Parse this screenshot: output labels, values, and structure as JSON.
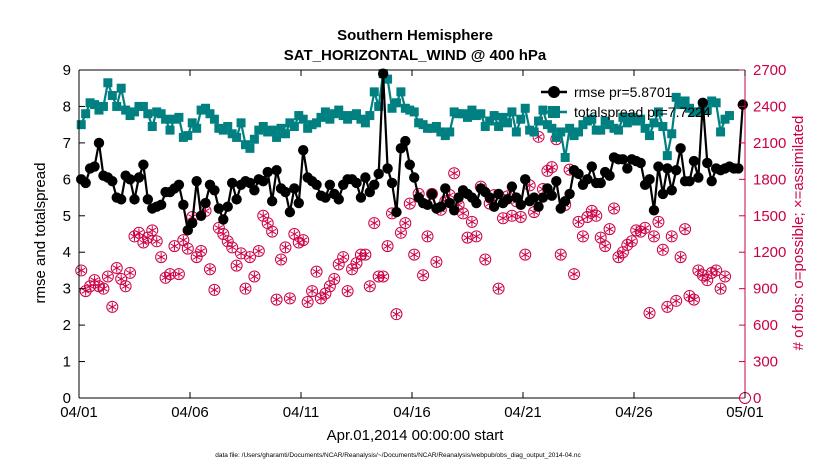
{
  "chart_data": {
    "type": "line",
    "title": "Southern Hemisphere",
    "subtitle": "SAT_HORIZONTAL_WIND @ 400 hPa",
    "xlabel": "Apr.01,2014 00:00:00 start",
    "ylabel_left": "rmse and totalspread",
    "ylabel_right": "# of obs: o=possible; ×=assimilated",
    "x_ticks": [
      "04/01",
      "04/06",
      "04/11",
      "04/16",
      "04/21",
      "04/26",
      "05/01"
    ],
    "xlim": [
      0,
      30
    ],
    "ylim_left": [
      0,
      9
    ],
    "ylim_right": [
      0,
      2700
    ],
    "yticks_left": [
      0,
      1,
      2,
      3,
      4,
      5,
      6,
      7,
      8,
      9
    ],
    "yticks_right": [
      0,
      300,
      600,
      900,
      1200,
      1500,
      1800,
      2100,
      2400,
      2700
    ],
    "footnote": "data file: /Users/gharamti/Documents/NCAR/Reanalysis/~/Documents/NCAR/Reanalysis/webpub/obs_diag_output_2014-04.nc",
    "colors": {
      "rmse": "#000000",
      "totalspread": "#008080",
      "obs": "#cc0044"
    },
    "legend": [
      {
        "label": "rmse pr=5.8701",
        "series": "rmse"
      },
      {
        "label": "totalspread pr=7.7224",
        "series": "totalspread"
      }
    ],
    "series": [
      {
        "name": "rmse",
        "axis": "left",
        "values": [
          6.0,
          5.9,
          6.3,
          6.35,
          7.0,
          6.1,
          6.05,
          5.95,
          5.5,
          5.45,
          6.1,
          6.0,
          5.45,
          6.05,
          6.4,
          5.45,
          5.2,
          5.25,
          5.3,
          5.65,
          5.65,
          5.75,
          5.85,
          5.3,
          4.6,
          4.8,
          5.95,
          5.0,
          5.35,
          5.85,
          5.7,
          5.2,
          4.9,
          5.25,
          5.9,
          5.45,
          5.85,
          5.95,
          5.9,
          5.7,
          6.0,
          5.95,
          6.2,
          5.4,
          6.25,
          5.75,
          5.65,
          5.1,
          5.75,
          5.35,
          6.8,
          6.05,
          5.95,
          5.85,
          5.55,
          5.5,
          5.85,
          5.6,
          5.45,
          5.85,
          6.0,
          6.0,
          5.9,
          5.5,
          6.05,
          5.65,
          5.85,
          6.15,
          8.9,
          6.3,
          5.9,
          5.1,
          6.85,
          7.05,
          6.4,
          6.05,
          5.5,
          5.35,
          5.3,
          5.6,
          5.2,
          5.25,
          5.75,
          5.35,
          5.15,
          5.5,
          5.7,
          5.6,
          5.5,
          5.35,
          5.75,
          5.65,
          5.5,
          5.25,
          5.6,
          5.35,
          5.45,
          5.8,
          5.5,
          5.3,
          6.0,
          5.4,
          5.5,
          5.25,
          5.5,
          5.75,
          5.55,
          5.95,
          5.2,
          5.4,
          5.6,
          6.25,
          6.15,
          5.85,
          6.0,
          6.35,
          5.9,
          5.9,
          6.2,
          6.1,
          6.6,
          6.55,
          6.55,
          6.3,
          6.55,
          6.5,
          6.45,
          5.85,
          6.0,
          5.15,
          6.35,
          5.6,
          6.3,
          5.7,
          6.25,
          6.85,
          5.95,
          5.95,
          6.5,
          6.05,
          8.1,
          6.45,
          5.95,
          6.3,
          6.25,
          6.3,
          6.35,
          6.3,
          6.3,
          8.05
        ]
      },
      {
        "name": "totalspread",
        "axis": "left",
        "values": [
          7.5,
          7.8,
          8.1,
          8.05,
          7.9,
          8.0,
          8.65,
          8.3,
          8.0,
          8.5,
          7.9,
          7.75,
          7.85,
          8.0,
          8.0,
          7.8,
          7.45,
          7.85,
          7.8,
          7.65,
          7.35,
          7.65,
          7.7,
          7.15,
          7.2,
          7.55,
          7.4,
          7.9,
          7.95,
          7.8,
          7.65,
          7.4,
          7.35,
          7.45,
          7.25,
          7.15,
          7.55,
          6.95,
          6.85,
          7.1,
          7.35,
          7.45,
          7.3,
          7.35,
          7.15,
          7.4,
          7.25,
          7.55,
          7.45,
          7.75,
          7.65,
          7.4,
          7.5,
          7.55,
          7.7,
          7.85,
          7.65,
          7.8,
          7.9,
          7.75,
          7.65,
          7.75,
          7.8,
          7.65,
          7.55,
          7.75,
          8.4,
          8.0,
          8.9,
          8.75,
          7.95,
          8.1,
          8.4,
          7.95,
          7.9,
          7.85,
          7.55,
          7.5,
          7.4,
          7.4,
          7.45,
          7.3,
          7.2,
          7.3,
          7.85,
          7.8,
          7.8,
          7.7,
          7.9,
          7.75,
          7.8,
          7.45,
          7.6,
          7.75,
          7.45,
          7.7,
          7.55,
          7.85,
          7.3,
          7.65,
          7.95,
          7.35,
          7.3,
          7.6,
          7.9,
          7.5,
          7.4,
          7.15,
          7.3,
          6.6,
          7.4,
          7.2,
          7.3,
          7.5,
          7.6,
          7.65,
          7.35,
          7.35,
          7.6,
          7.5,
          7.4,
          7.35,
          7.7,
          7.55,
          7.7,
          7.6,
          7.65,
          7.4,
          7.2,
          7.55,
          7.85,
          7.45,
          6.65,
          7.25,
          8.25,
          8.05,
          8.15,
          7.95,
          7.85,
          7.85,
          8.05,
          7.9,
          8.15,
          8.1,
          7.3,
          7.65,
          7.75
        ]
      },
      {
        "name": "possible",
        "axis": "right",
        "values": [
          1050,
          880,
          920,
          970,
          920,
          900,
          1000,
          750,
          1070,
          980,
          920,
          1030,
          1330,
          1360,
          1280,
          1320,
          1380,
          1290,
          1160,
          990,
          1020,
          1250,
          1020,
          1300,
          1230,
          1490,
          1160,
          1210,
          1540,
          1060,
          890,
          1400,
          1350,
          1290,
          1240,
          1090,
          1190,
          900,
          1160,
          1000,
          1210,
          1500,
          1440,
          1370,
          810,
          1140,
          1240,
          820,
          1350,
          1280,
          1300,
          790,
          880,
          1040,
          820,
          860,
          920,
          980,
          1100,
          1160,
          880,
          1060,
          1110,
          1180,
          1180,
          920,
          1440,
          1000,
          1000,
          1250,
          1520,
          690,
          1360,
          1440,
          1600,
          1180,
          1680,
          1010,
          1330,
          1680,
          1120,
          1550,
          1620,
          1670,
          1850,
          1590,
          1520,
          1320,
          1450,
          1330,
          1740,
          1140,
          1600,
          1670,
          900,
          1480,
          1660,
          1500,
          1620,
          1490,
          1180,
          1750,
          1530,
          2150,
          1720,
          1870,
          1900,
          2130,
          1180,
          1590,
          1880,
          1020,
          1450,
          1330,
          1490,
          1540,
          1500,
          1320,
          1250,
          1390,
          1560,
          1160,
          1200,
          1260,
          1290,
          1380,
          1370,
          1400,
          700,
          1330,
          1450,
          1220,
          750,
          1330,
          800,
          1160,
          1390,
          840,
          810,
          1050,
          1010,
          970,
          1030,
          1050,
          900,
          1000
        ]
      }
    ]
  }
}
